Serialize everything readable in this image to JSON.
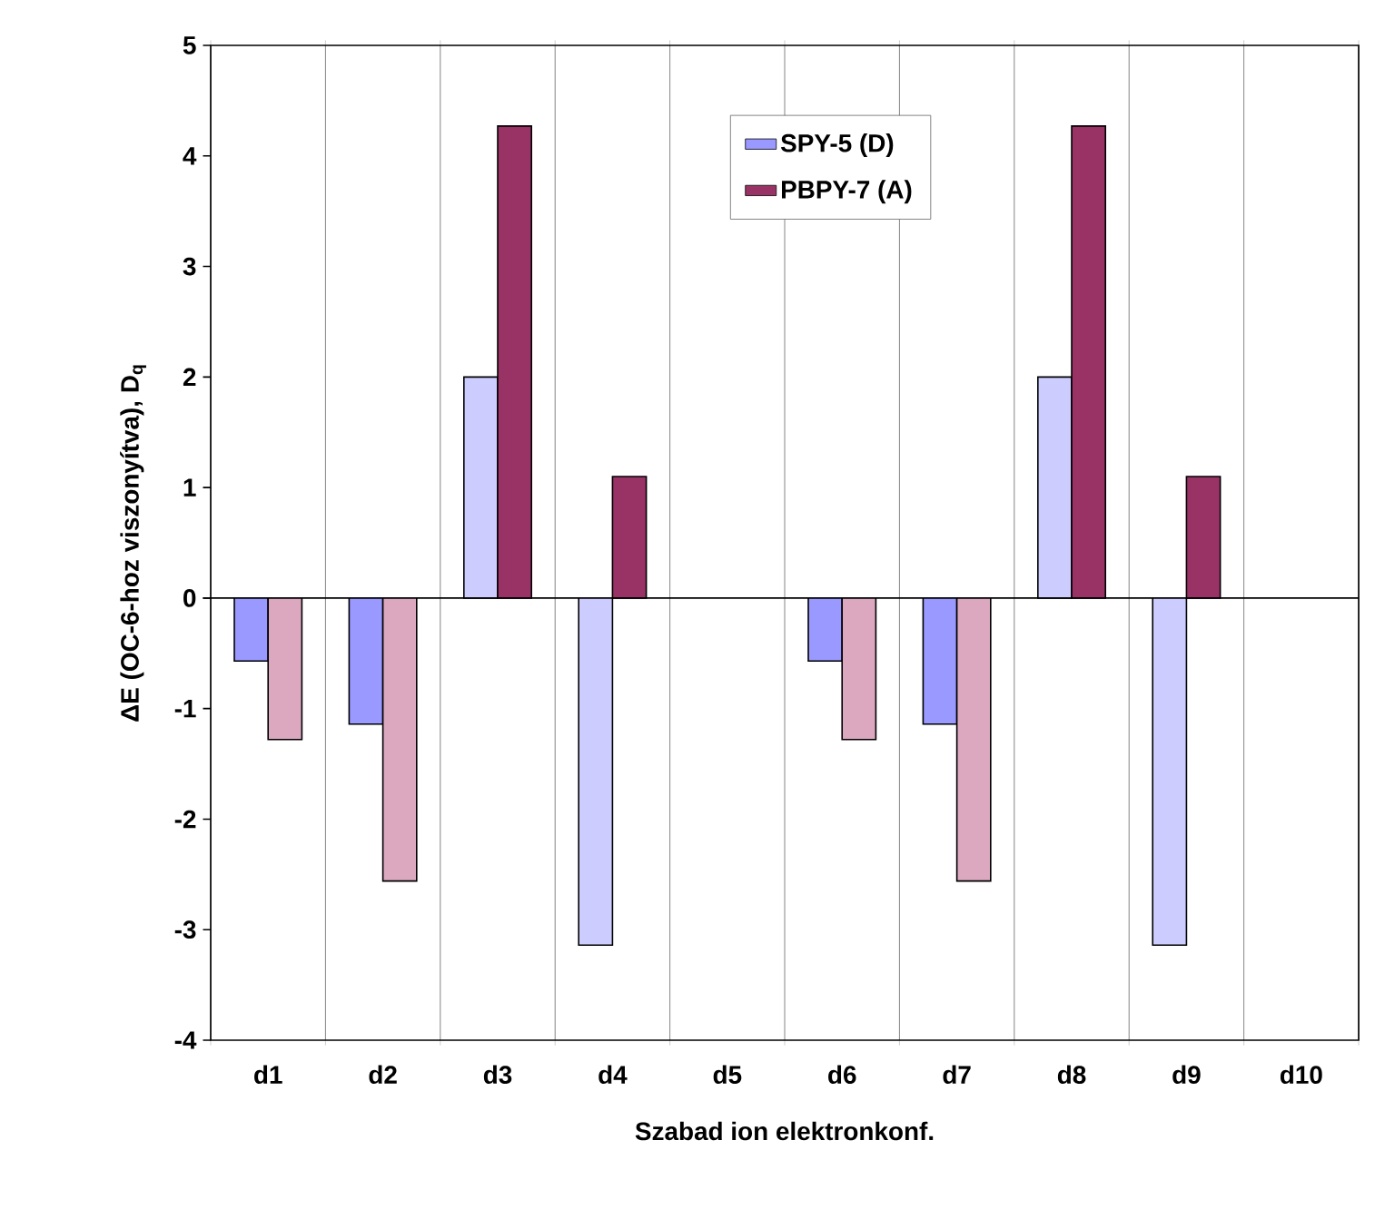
{
  "chart_data": {
    "type": "bar",
    "xlabel": "Szabad ion elektronkonf.",
    "ylabel": "ΔE (OC-6-hoz viszonyítva), D$_{q}$",
    "categories": [
      "d1",
      "d2",
      "d3",
      "d4",
      "d5",
      "d6",
      "d7",
      "d8",
      "d9",
      "d10"
    ],
    "series": [
      {
        "name": "SPY-5 (D)",
        "color": "#9999ff",
        "colors": [
          "#9999ff",
          "#9999ff",
          "#ccccff",
          "#ccccff",
          "#9999ff",
          "#9999ff",
          "#9999ff",
          "#ccccff",
          "#ccccff",
          "#9999ff"
        ],
        "values": [
          -0.57,
          -1.14,
          2,
          -3.14,
          null,
          -0.57,
          -1.14,
          2,
          -3.14,
          null
        ]
      },
      {
        "name": "PBPY-7 (A)",
        "color": "#993366",
        "colors": [
          "#dba8c0",
          "#dba8c0",
          "#993366",
          "#993366",
          "#993366",
          "#dba8c0",
          "#dba8c0",
          "#993366",
          "#993366",
          "#993366"
        ],
        "values": [
          -1.28,
          -2.56,
          4.27,
          1.1,
          null,
          -1.28,
          -2.56,
          4.27,
          1.1,
          null
        ]
      }
    ],
    "ylim": [
      -4,
      5
    ],
    "yticks": [
      -4,
      -3,
      -2,
      -1,
      0,
      1,
      2,
      3,
      4,
      5
    ],
    "grid": "x",
    "legend": "top"
  }
}
